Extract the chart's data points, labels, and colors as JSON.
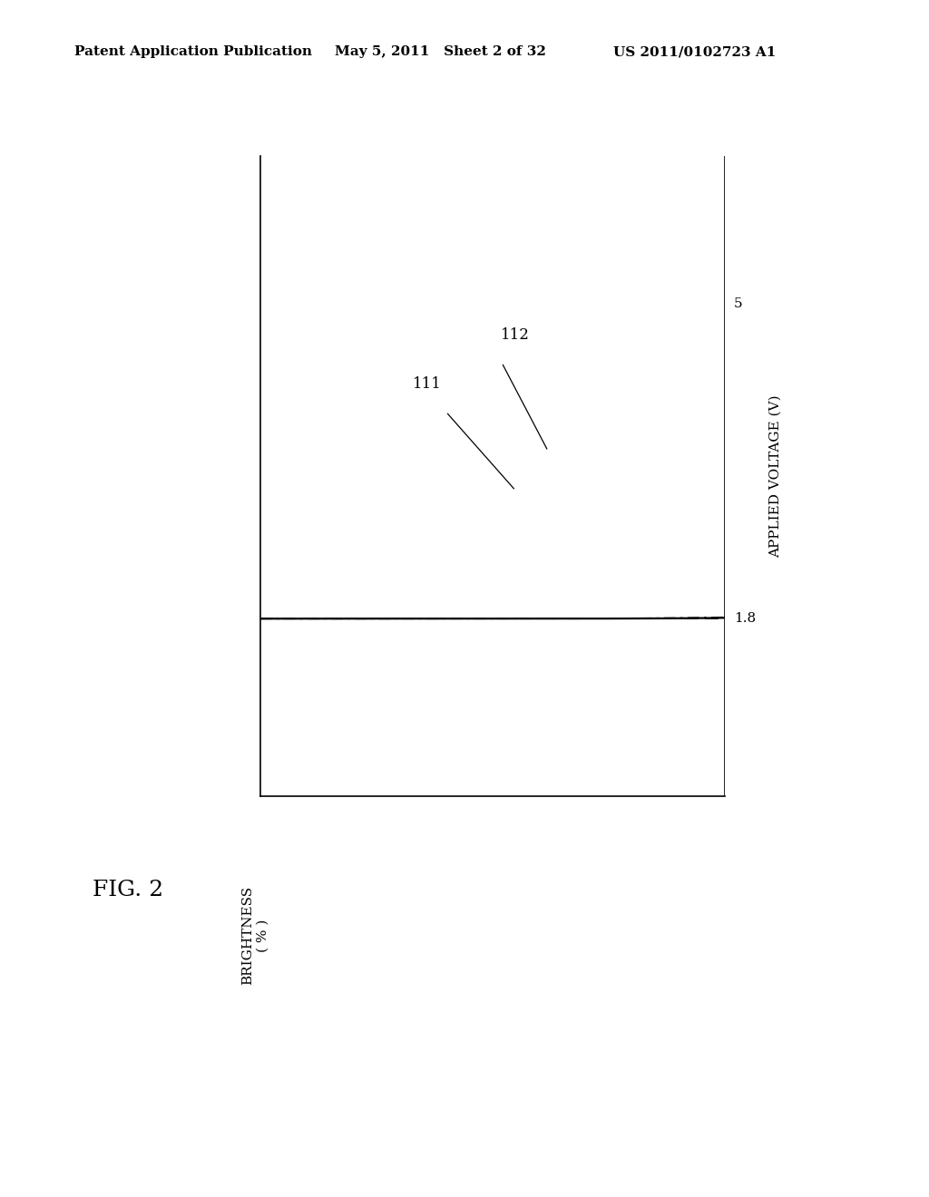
{
  "header_left": "Patent Application Publication",
  "header_mid": "May 5, 2011   Sheet 2 of 32",
  "header_right": "US 2011/0102723 A1",
  "fig_label": "FIG. 2",
  "xlabel": "BRIGHTNESS\n( % )",
  "ylabel": "APPLIED VOLTAGE (V)",
  "tick_1_8": "1.8",
  "tick_5": "5",
  "curve111_label": "111",
  "curve112_label": "112",
  "background_color": "#ffffff",
  "line_color": "#000000",
  "header_fontsize": 11,
  "fig_label_fontsize": 18,
  "axis_label_fontsize": 11,
  "tick_label_fontsize": 11,
  "curve_label_fontsize": 12
}
